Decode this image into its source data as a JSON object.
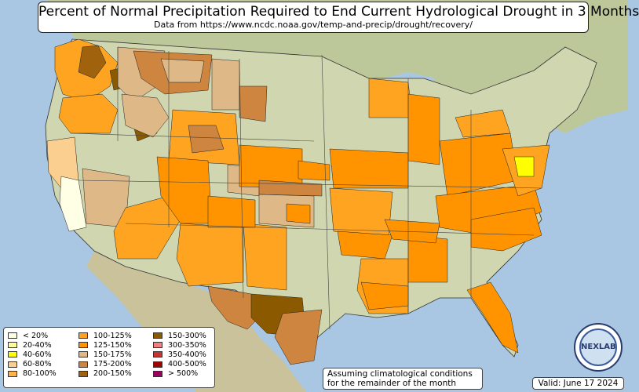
{
  "title": "Percent of Normal Precipitation Required to End Current Hydrological Drought in 3 Months",
  "subtitle": "Data from https://www.ncdc.noaa.gov/temp-and-precip/drought/recovery/",
  "legend": {
    "items": [
      {
        "label": "< 20%",
        "color": "#ffffe6"
      },
      {
        "label": "20-40%",
        "color": "#ffff9e"
      },
      {
        "label": "40-60%",
        "color": "#ffff00"
      },
      {
        "label": "60-80%",
        "color": "#fbcf90"
      },
      {
        "label": "80-100%",
        "color": "#ffb347"
      },
      {
        "label": "100-125%",
        "color": "#ffa420"
      },
      {
        "label": "125-150%",
        "color": "#ff9400"
      },
      {
        "label": "150-175%",
        "color": "#deb887"
      },
      {
        "label": "175-200%",
        "color": "#cd853f"
      },
      {
        "label": "200-150%",
        "color": "#a0620d"
      },
      {
        "label": "150-300%",
        "color": "#8b5a00"
      },
      {
        "label": "300-350%",
        "color": "#f08080"
      },
      {
        "label": "350-400%",
        "color": "#c83232"
      },
      {
        "label": "400-500%",
        "color": "#a00000"
      },
      {
        "label": "> 500%",
        "color": "#9b0060"
      }
    ]
  },
  "note": {
    "line1": "Assuming climatological conditions",
    "line2": "for the remainder of the month"
  },
  "valid": "Valid: June 17 2024",
  "logo_text": "NEXLAB",
  "colors": {
    "water": "#a9c7e3",
    "land": "#cfd6b0",
    "land_dark": "#b6c493",
    "border": "#000000"
  }
}
